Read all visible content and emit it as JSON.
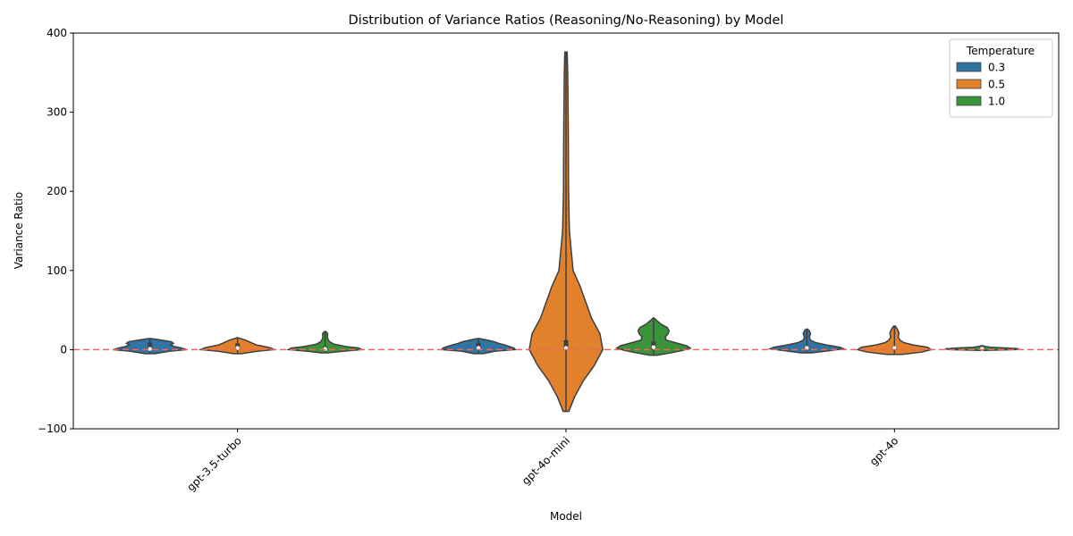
{
  "chart_data": {
    "type": "violin",
    "title": "Distribution of Variance Ratios (Reasoning/No-Reasoning) by Model",
    "xlabel": "Model",
    "ylabel": "Variance Ratio",
    "ylim": [
      -100,
      400
    ],
    "yticks": [
      -100,
      0,
      100,
      200,
      300,
      400
    ],
    "reference_line": {
      "y": 0,
      "color": "#e8685b",
      "style": "dashed"
    },
    "categories": [
      "gpt-3.5-turbo",
      "gpt-4o-mini",
      "gpt-4o"
    ],
    "legend": {
      "title": "Temperature",
      "position": "top-right"
    },
    "series": [
      {
        "name": "0.3",
        "color": "#3274a1",
        "violins": [
          {
            "ymin": -5,
            "ymax": 14,
            "median": 1,
            "q1": 0,
            "q3": 9,
            "profile": [
              [
                -5,
                0.07
              ],
              [
                -2,
                0.27
              ],
              [
                0,
                0.5
              ],
              [
                2,
                0.43
              ],
              [
                4,
                0.33
              ],
              [
                6,
                0.28
              ],
              [
                8,
                0.32
              ],
              [
                10,
                0.29
              ],
              [
                12,
                0.16
              ],
              [
                14,
                0.02
              ]
            ]
          },
          {
            "ymin": -5,
            "ymax": 14,
            "median": 2,
            "q1": 0,
            "q3": 9,
            "profile": [
              [
                -5,
                0.08
              ],
              [
                -2,
                0.28
              ],
              [
                0,
                0.62
              ],
              [
                2,
                0.6
              ],
              [
                4,
                0.52
              ],
              [
                6,
                0.44
              ],
              [
                8,
                0.34
              ],
              [
                10,
                0.27
              ],
              [
                12,
                0.15
              ],
              [
                14,
                0.02
              ]
            ]
          },
          {
            "ymin": -4,
            "ymax": 26,
            "median": 2,
            "q1": 0,
            "q3": 4,
            "profile": [
              [
                -4,
                0.05
              ],
              [
                -1,
                0.2
              ],
              [
                1,
                0.3
              ],
              [
                3,
                0.27
              ],
              [
                6,
                0.16
              ],
              [
                9,
                0.07
              ],
              [
                12,
                0.03
              ],
              [
                16,
                0.02
              ],
              [
                20,
                0.03
              ],
              [
                24,
                0.02
              ],
              [
                26,
                0.005
              ]
            ]
          }
        ]
      },
      {
        "name": "0.5",
        "color": "#e1812c",
        "violins": [
          {
            "ymin": -5,
            "ymax": 15,
            "median": 2,
            "q1": 0,
            "q3": 8,
            "profile": [
              [
                -5,
                0.06
              ],
              [
                -2,
                0.3
              ],
              [
                0,
                0.55
              ],
              [
                2,
                0.5
              ],
              [
                4,
                0.4
              ],
              [
                6,
                0.28
              ],
              [
                9,
                0.2
              ],
              [
                12,
                0.12
              ],
              [
                15,
                0.01
              ]
            ]
          },
          {
            "ymin": -78,
            "ymax": 376,
            "median": 2,
            "q1": 0,
            "q3": 12,
            "profile": [
              [
                -78,
                0.01
              ],
              [
                -60,
                0.03
              ],
              [
                -40,
                0.06
              ],
              [
                -20,
                0.1
              ],
              [
                0,
                0.13
              ],
              [
                20,
                0.12
              ],
              [
                40,
                0.09
              ],
              [
                60,
                0.07
              ],
              [
                80,
                0.05
              ],
              [
                100,
                0.025
              ],
              [
                150,
                0.012
              ],
              [
                200,
                0.009
              ],
              [
                280,
                0.008
              ],
              [
                350,
                0.006
              ],
              [
                376,
                0.004
              ]
            ]
          },
          {
            "ymin": -6,
            "ymax": 30,
            "median": 2,
            "q1": 0,
            "q3": 4,
            "profile": [
              [
                -6,
                0.04
              ],
              [
                -3,
                0.15
              ],
              [
                0,
                0.2
              ],
              [
                3,
                0.18
              ],
              [
                6,
                0.1
              ],
              [
                9,
                0.05
              ],
              [
                12,
                0.03
              ],
              [
                16,
                0.02
              ],
              [
                20,
                0.025
              ],
              [
                24,
                0.02
              ],
              [
                28,
                0.01
              ],
              [
                30,
                0.003
              ]
            ]
          }
        ]
      },
      {
        "name": "1.0",
        "color": "#3a923a",
        "violins": [
          {
            "ymin": -4,
            "ymax": 23,
            "median": 1,
            "q1": 0,
            "q3": 4,
            "profile": [
              [
                -4,
                0.05
              ],
              [
                -2,
                0.25
              ],
              [
                0,
                0.5
              ],
              [
                2,
                0.46
              ],
              [
                4,
                0.28
              ],
              [
                7,
                0.12
              ],
              [
                10,
                0.06
              ],
              [
                13,
                0.04
              ],
              [
                16,
                0.03
              ],
              [
                19,
                0.035
              ],
              [
                21,
                0.03
              ],
              [
                23,
                0.005
              ]
            ]
          },
          {
            "ymin": -7,
            "ymax": 40,
            "median": 3,
            "q1": 0,
            "q3": 10,
            "profile": [
              [
                -7,
                0.04
              ],
              [
                -4,
                0.18
              ],
              [
                -1,
                0.3
              ],
              [
                2,
                0.38
              ],
              [
                5,
                0.34
              ],
              [
                8,
                0.25
              ],
              [
                12,
                0.13
              ],
              [
                16,
                0.12
              ],
              [
                20,
                0.15
              ],
              [
                24,
                0.16
              ],
              [
                28,
                0.14
              ],
              [
                32,
                0.08
              ],
              [
                36,
                0.04
              ],
              [
                40,
                0.005
              ]
            ]
          },
          {
            "ymin": -1,
            "ymax": 5,
            "median": 1,
            "q1": 0,
            "q3": 2,
            "profile": [
              [
                -1,
                0.05
              ],
              [
                0,
                0.55
              ],
              [
                1,
                0.62
              ],
              [
                2,
                0.45
              ],
              [
                3,
                0.15
              ],
              [
                4,
                0.06
              ],
              [
                5,
                0.01
              ]
            ]
          }
        ]
      }
    ]
  }
}
